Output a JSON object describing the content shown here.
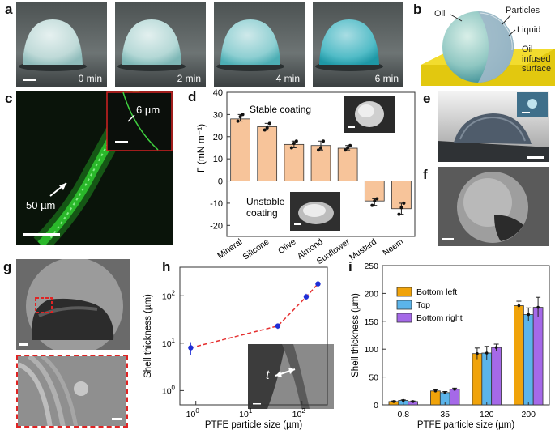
{
  "panel_letters": [
    "a",
    "b",
    "c",
    "d",
    "e",
    "f",
    "g",
    "h",
    "i"
  ],
  "panel_a": {
    "times": [
      "0 min",
      "2 min",
      "4 min",
      "6 min"
    ]
  },
  "panel_b": {
    "labels": {
      "oil": "Oil",
      "particles": "Particles",
      "liquid": "Liquid",
      "surface": "Oil\ninfused\nsurface"
    }
  },
  "panel_c": {
    "inset_label": "6 µm",
    "main_label": "50 µm",
    "colors": {
      "bg": "#0a140a",
      "fluor": "#2fd12f",
      "inset_frame": "#d22222"
    }
  },
  "panel_d": {
    "stable_label": "Stable coating",
    "unstable_label_1": "Unstable",
    "unstable_label_2": "coating"
  },
  "panel_h": {
    "inset_symbol": "t",
    "axis_tick_labels": {
      "y": [
        "10^0",
        "10^1",
        "10^2"
      ],
      "x": [
        "10^0",
        "10^1",
        "10^2"
      ]
    }
  },
  "chart_data": [
    {
      "type": "bar",
      "panel": "d",
      "categories": [
        "Mineral",
        "Silicone",
        "Olive",
        "Almond",
        "Sunflower",
        "Mustard",
        "Neem"
      ],
      "values": [
        28,
        24.5,
        16.5,
        16,
        14.8,
        -9,
        -12.5
      ],
      "ylabel": "Γ (mN m⁻¹)",
      "ylim": [
        -25,
        40
      ],
      "yticks": [
        -20,
        -10,
        0,
        10,
        20,
        30,
        40
      ],
      "colors": {
        "bar": "#f7c49a",
        "edge": "#333333"
      },
      "points": [
        [
          27,
          29,
          30
        ],
        [
          23,
          24,
          26
        ],
        [
          15,
          17,
          18
        ],
        [
          14,
          15,
          18
        ],
        [
          14,
          15,
          16
        ],
        [
          -11,
          -9,
          -8
        ],
        [
          -15,
          -12,
          -10
        ]
      ]
    },
    {
      "type": "line",
      "panel": "h",
      "x": [
        0.8,
        35,
        120,
        200
      ],
      "y": [
        8,
        23,
        95,
        178
      ],
      "yerr": [
        2.5,
        3,
        15,
        10
      ],
      "xlabel": "PTFE particle size (µm)",
      "ylabel": "Shell thickness (µm)",
      "xscale": "log",
      "yscale": "log",
      "xlim": [
        0.5,
        300
      ],
      "ylim": [
        0.5,
        400
      ],
      "colors": {
        "point": "#1f2fd6",
        "line": "#e53030"
      }
    },
    {
      "type": "bar",
      "panel": "i",
      "categories": [
        "0.8",
        "35",
        "120",
        "200"
      ],
      "series": [
        {
          "name": "Bottom left",
          "values": [
            6,
            25,
            92,
            178
          ],
          "err": [
            1,
            2,
            10,
            8
          ],
          "color": "#f0a30a"
        },
        {
          "name": "Top",
          "values": [
            8,
            22,
            93,
            162
          ],
          "err": [
            1,
            2,
            12,
            12
          ],
          "color": "#5bb4ea"
        },
        {
          "name": "Bottom right",
          "values": [
            6,
            28,
            103,
            175
          ],
          "err": [
            1,
            2,
            6,
            18
          ],
          "color": "#a569e8"
        }
      ],
      "xlabel": "PTFE particle size (µm)",
      "ylabel": "Shell thickness (µm)",
      "ylim": [
        0,
        250
      ],
      "yticks": [
        0,
        50,
        100,
        150,
        200,
        250
      ],
      "legend": "top-left"
    }
  ]
}
